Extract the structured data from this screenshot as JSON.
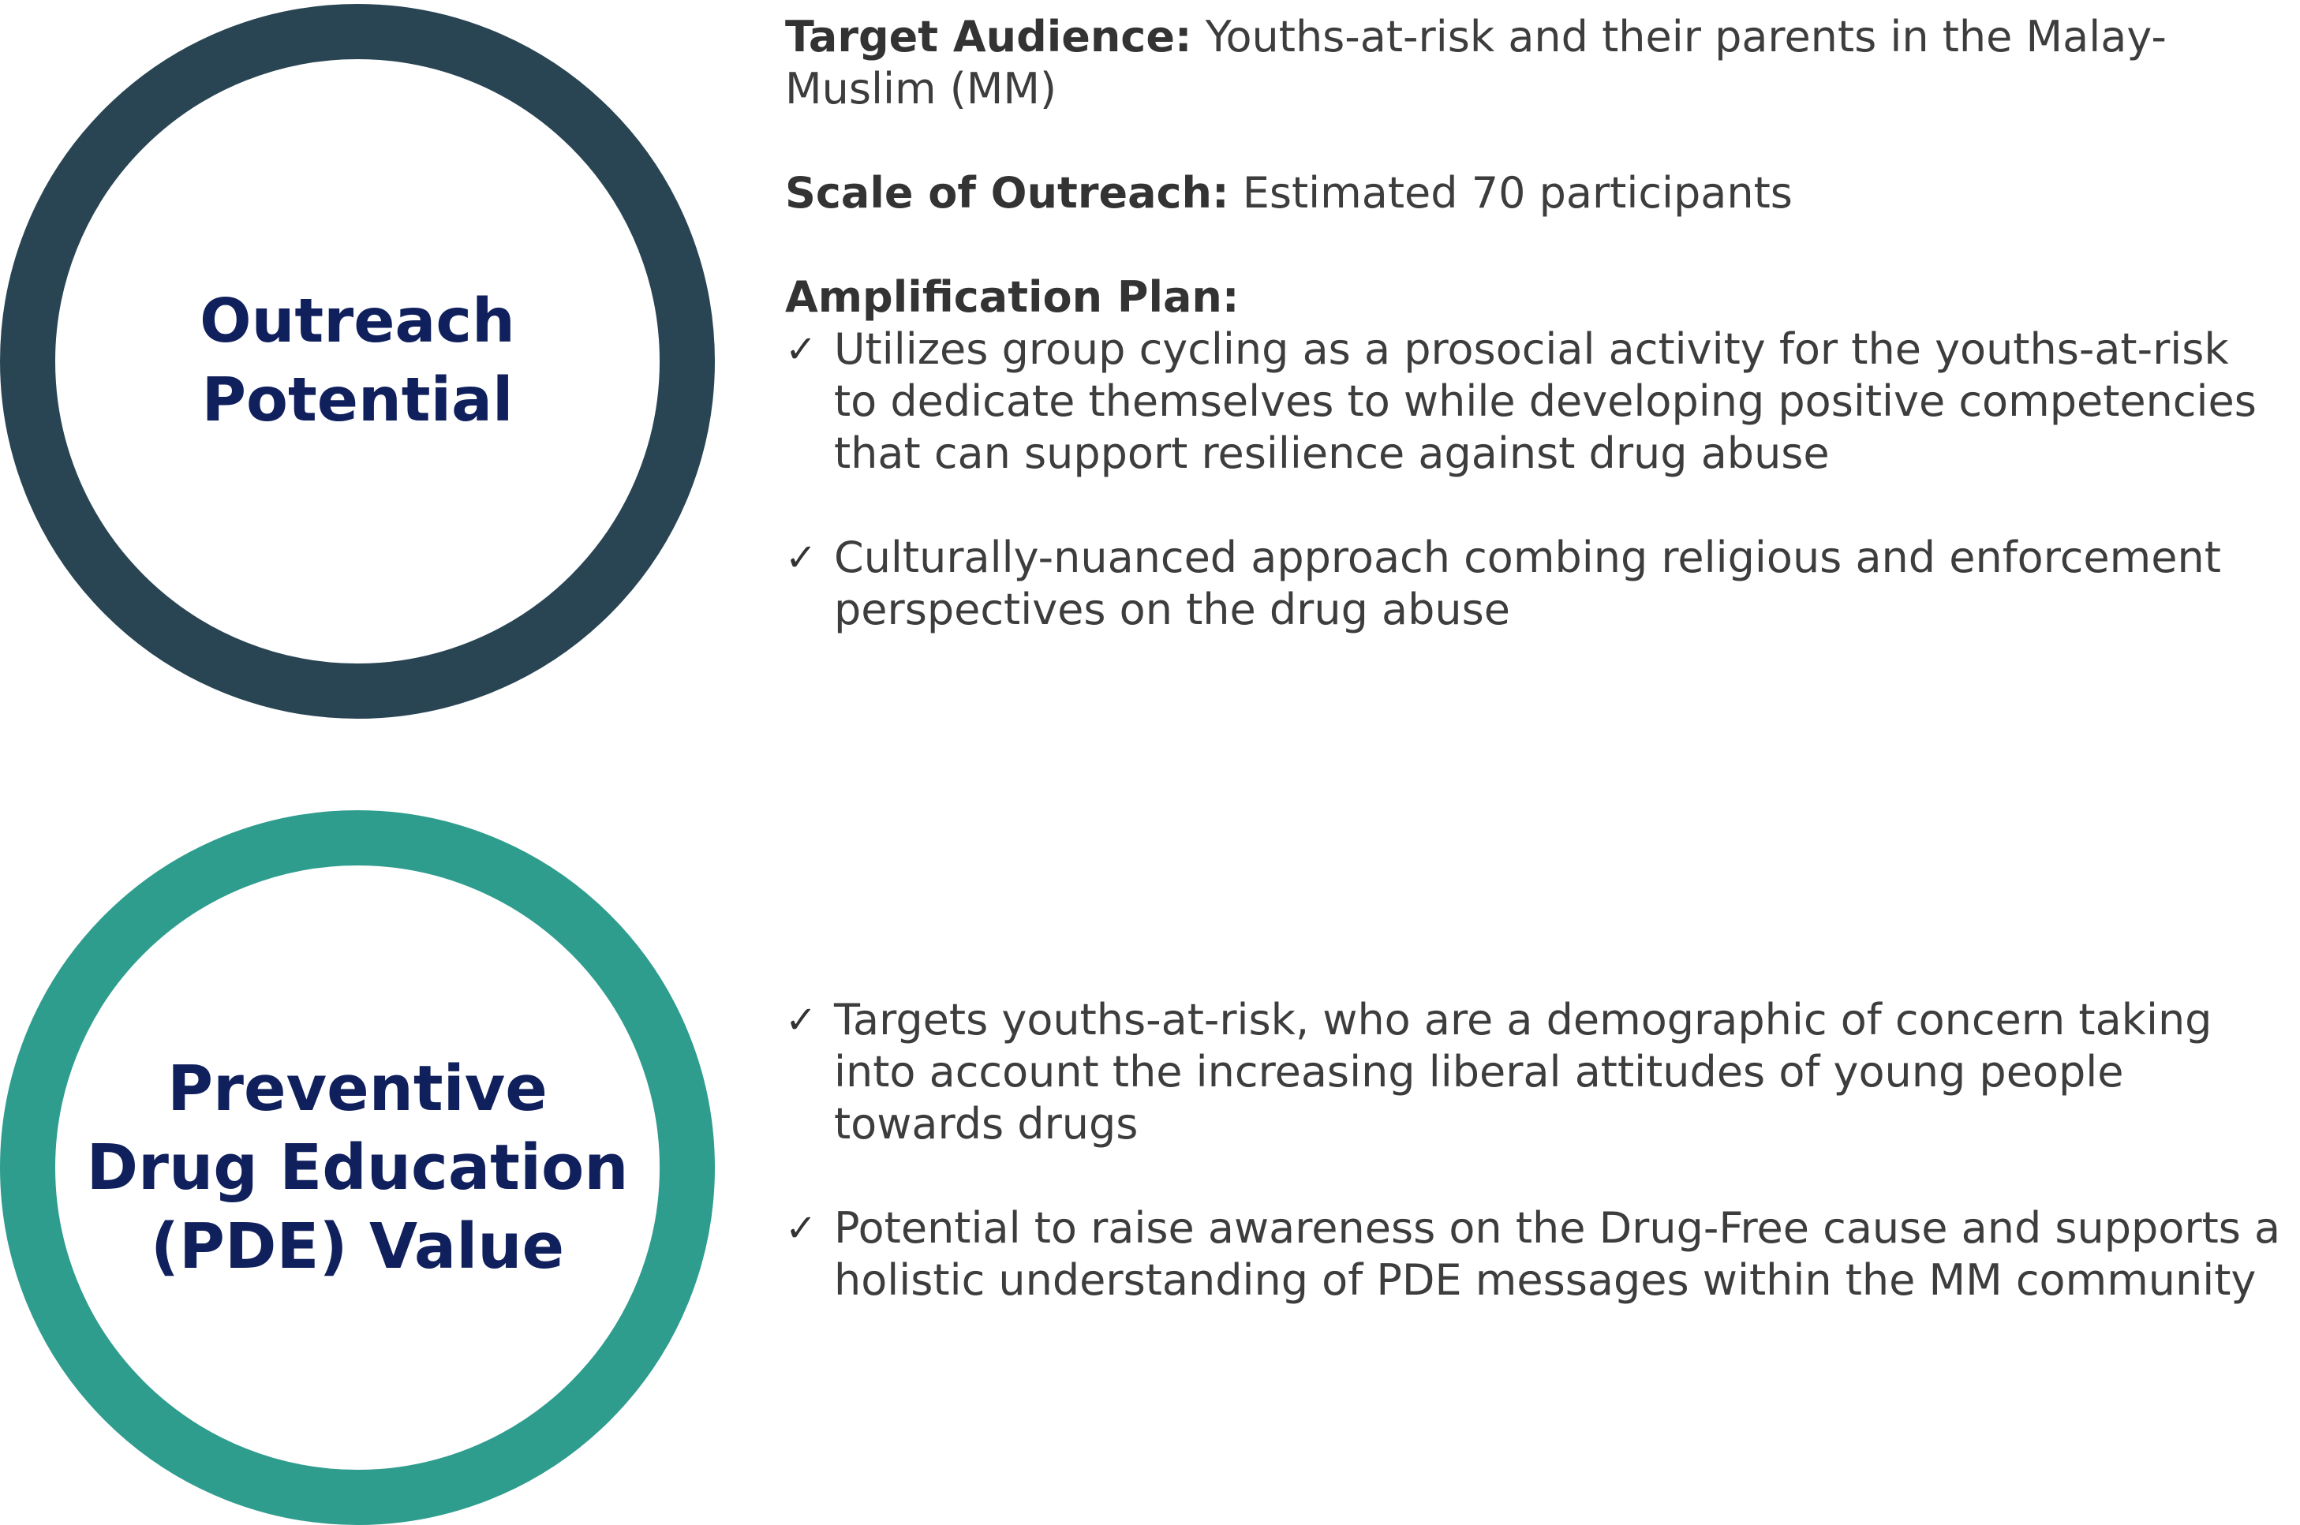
{
  "outreach_ring": {
    "title_lines": [
      "Outreach",
      "Potential"
    ],
    "ring_color": "#294554",
    "title_color": "#10205c"
  },
  "pde_ring": {
    "title_lines": [
      "Preventive",
      "Drug Education",
      "(PDE) Value"
    ],
    "ring_color": "#2e9d8e",
    "title_color": "#10205c"
  },
  "outreach_details": {
    "target_audience_label": "Target Audience:",
    "target_audience_value": "Youths-at-risk and their parents in the Malay-Muslim (MM)",
    "scale_label": "Scale of Outreach:",
    "scale_value": "Estimated 70 participants",
    "amplification_label": "Amplification Plan:",
    "amplification_items": [
      "Utilizes group cycling as a prosocial activity for the youths-at-risk to dedicate themselves to while developing positive competencies that can support resilience against drug abuse",
      "Culturally-nuanced approach combing religious and enforcement perspectives on the drug abuse"
    ]
  },
  "pde_details": {
    "items": [
      "Targets youths-at-risk, who are a demographic of concern taking into account the increasing liberal attitudes of young people towards drugs",
      "Potential to raise awareness on the Drug-Free cause and supports a holistic understanding of PDE messages within the MM community"
    ]
  },
  "check_glyph": "✓"
}
